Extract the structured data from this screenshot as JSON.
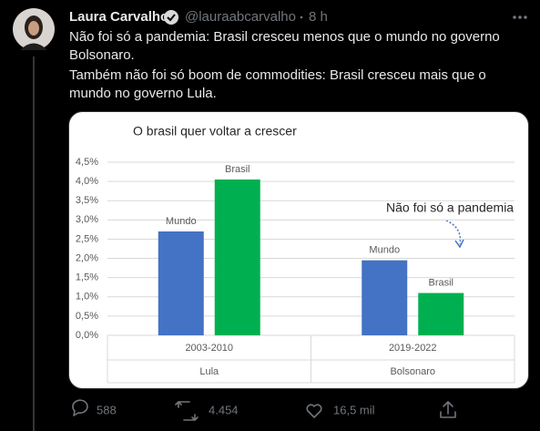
{
  "tweet": {
    "name": "Laura Carvalho",
    "handle": "@lauraabcarvalho",
    "time": "8 h",
    "text_lines": [
      "Não foi só a pandemia: Brasil cresceu menos que o mundo no governo",
      "Bolsonaro.",
      "Também não foi só boom de commodities: Brasil cresceu mais que o",
      "mundo no governo Lula."
    ],
    "replies": "588",
    "retweets": "4.454",
    "likes": "16,5 mil"
  },
  "chart_data": {
    "type": "bar",
    "title": "O brasil quer voltar a crescer",
    "categories": [
      "2003-2010",
      "2019-2022"
    ],
    "category_groups": [
      "Lula",
      "Bolsonaro"
    ],
    "series": [
      {
        "name": "Mundo",
        "color": "#4472c4",
        "values": [
          2.7,
          1.95
        ]
      },
      {
        "name": "Brasil",
        "color": "#00b050",
        "values": [
          4.05,
          1.1
        ]
      }
    ],
    "ylim": [
      0,
      4.5
    ],
    "yticks": [
      {
        "value": 0,
        "label": "0,0%"
      },
      {
        "value": 0.5,
        "label": "0,5%"
      },
      {
        "value": 1,
        "label": "1,0%"
      },
      {
        "value": 1.5,
        "label": "1,5%"
      },
      {
        "value": 2,
        "label": "2,0%"
      },
      {
        "value": 2.5,
        "label": "2,5%"
      },
      {
        "value": 3,
        "label": "3,0%"
      },
      {
        "value": 3.5,
        "label": "3,5%"
      },
      {
        "value": 4,
        "label": "4,0%"
      },
      {
        "value": 4.5,
        "label": "4,5%"
      }
    ],
    "grid": true,
    "annotation": "Não foi só a pandemia"
  }
}
